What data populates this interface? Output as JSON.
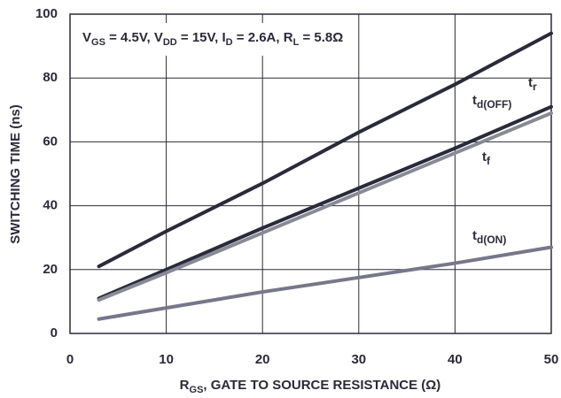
{
  "chart_data": {
    "type": "line",
    "annotation": [
      "V",
      "GS",
      " = 4.5V, V",
      "DD",
      " = 15V, I",
      "D",
      " = 2.6A, R",
      "L",
      " = 5.8Ω"
    ],
    "x_label": [
      "R",
      "GS",
      ", GATE TO SOURCE RESISTANCE (Ω)"
    ],
    "y_label": "SWITCHING TIME (ns)",
    "x": [
      3,
      10,
      20,
      30,
      40,
      50
    ],
    "series": [
      {
        "name": "t",
        "subscript": "r",
        "color": "#2b2a3a",
        "values": [
          21,
          32,
          47,
          63,
          78,
          94
        ]
      },
      {
        "name": "t",
        "subscript": "d(OFF)",
        "color": "#2b2a3a",
        "values": [
          11,
          20,
          33,
          45.5,
          58,
          71
        ]
      },
      {
        "name": "t",
        "subscript": "f",
        "color": "#8a8a96",
        "values": [
          10.5,
          19,
          31.5,
          44,
          56.5,
          69
        ]
      },
      {
        "name": "t",
        "subscript": "d(ON)",
        "color": "#77778a",
        "values": [
          4.5,
          8,
          13,
          17.5,
          22,
          27
        ]
      }
    ],
    "xlim": [
      0,
      50
    ],
    "xticks": [
      0,
      10,
      20,
      30,
      40,
      50
    ],
    "ylim": [
      0,
      100
    ],
    "yticks": [
      0,
      20,
      40,
      60,
      80,
      100
    ],
    "grid": true
  }
}
